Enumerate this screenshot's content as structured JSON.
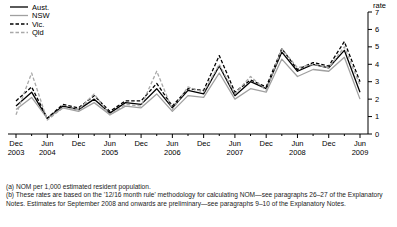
{
  "chart_data": {
    "type": "line",
    "y_label": "rate",
    "categories": [
      "Dec 2003",
      null,
      "Jun 2004",
      null,
      "Dec",
      null,
      "Jun 2005",
      null,
      "Dec",
      null,
      "Jun 2006",
      null,
      "Dec",
      null,
      "Jun 2007",
      null,
      "Dec",
      null,
      "Jun 2008",
      null,
      "Dec",
      null,
      "Jun 2009"
    ],
    "series": [
      {
        "name": "Aust.",
        "color": "#000000",
        "line_style": "solid",
        "values": [
          1.6,
          2.4,
          0.9,
          1.6,
          1.4,
          2.0,
          1.2,
          1.8,
          1.7,
          2.6,
          1.5,
          2.5,
          2.3,
          3.9,
          2.2,
          3.0,
          2.6,
          4.7,
          3.6,
          4.0,
          3.8,
          4.8,
          2.4
        ]
      },
      {
        "name": "NSW",
        "color": "#a0a0a0",
        "line_style": "solid",
        "values": [
          1.4,
          2.1,
          0.9,
          1.5,
          1.3,
          1.8,
          1.1,
          1.6,
          1.5,
          2.3,
          1.3,
          2.2,
          2.1,
          3.5,
          2.0,
          2.6,
          2.4,
          4.3,
          3.3,
          3.7,
          3.6,
          4.4,
          2.0
        ]
      },
      {
        "name": "Vic.",
        "color": "#000000",
        "line_style": "dashed",
        "values": [
          1.9,
          2.7,
          0.9,
          1.7,
          1.5,
          2.2,
          1.3,
          1.9,
          1.9,
          2.9,
          1.6,
          2.6,
          2.5,
          4.5,
          2.4,
          3.1,
          2.7,
          4.9,
          3.7,
          4.1,
          3.9,
          5.3,
          3.0
        ]
      },
      {
        "name": "Qld",
        "color": "#a8a8a8",
        "line_style": "dashed",
        "values": [
          1.1,
          3.5,
          0.8,
          1.5,
          1.4,
          2.3,
          1.1,
          1.7,
          1.6,
          3.6,
          1.4,
          2.7,
          2.4,
          4.0,
          2.3,
          3.3,
          2.5,
          4.9,
          3.8,
          4.0,
          3.8,
          5.0,
          2.8
        ]
      }
    ],
    "ylim": [
      0,
      7
    ],
    "yticks": [
      0,
      1,
      2,
      3,
      4,
      5,
      6,
      7
    ],
    "grid": false,
    "legend": "top-left",
    "annotations": [
      "(a) NOM per 1,000 estimated resident population.",
      "(b) These rates are based on the '12/16 month rule' methodology for calculating NOM—see paragraphs 26–27 of the Explanatory Notes. Estimates for September 2008 and onwards are preliminary—see paragraphs 9–10 of the Explanatory Notes."
    ]
  }
}
